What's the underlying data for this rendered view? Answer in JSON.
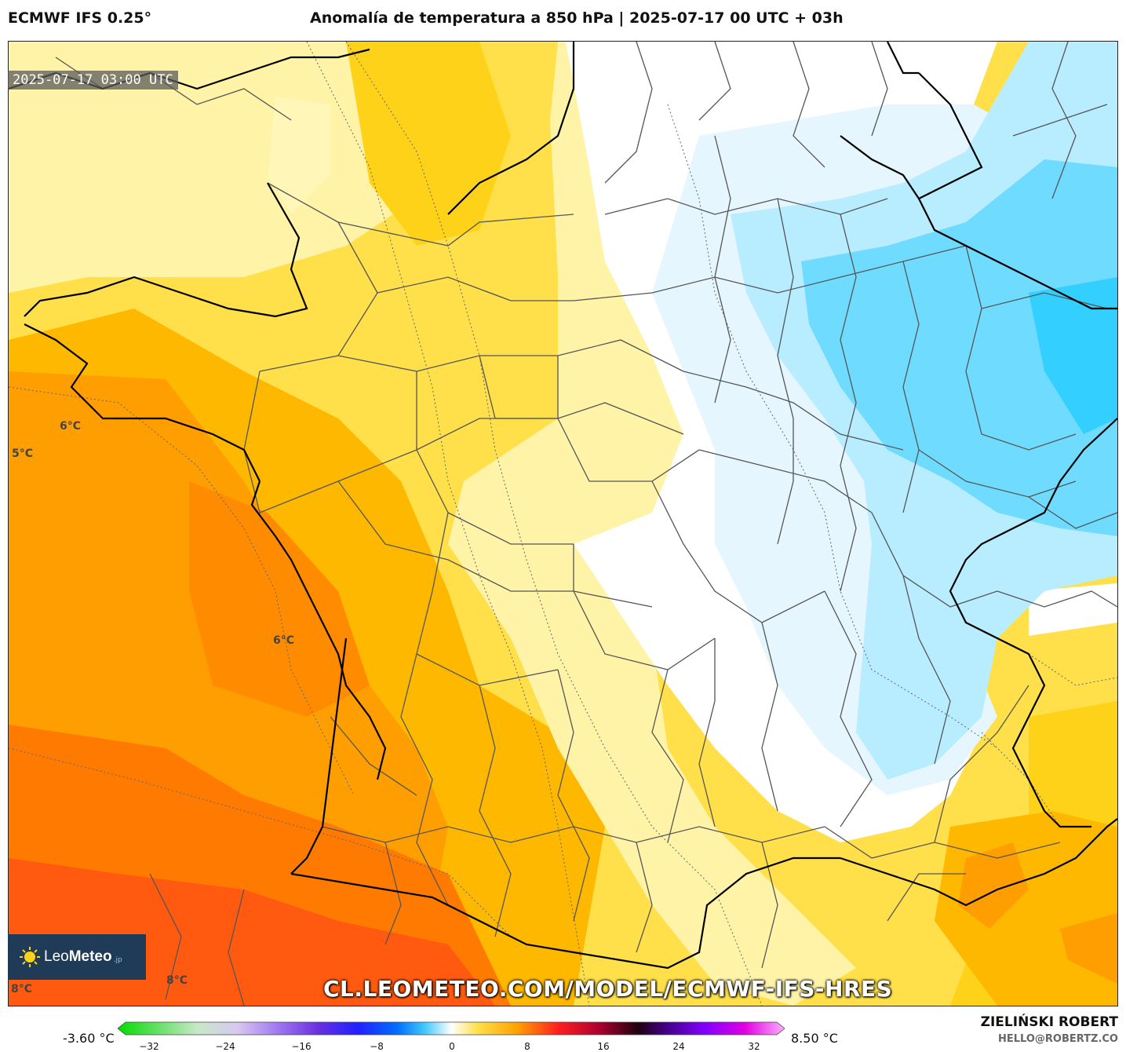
{
  "header": {
    "model": "ECMWF IFS 0.25°",
    "title": "Anomalía de temperatura a 850 hPa | 2025-07-17 00 UTC + 03h"
  },
  "map": {
    "timestamp": "2025-07-17 03:00 UTC",
    "contour_labels": [
      "6°C",
      "5°C",
      "6°C",
      "8°C",
      "8°C"
    ],
    "colors": {
      "light_yellow": "#fff3a8",
      "yellow": "#ffe04a",
      "gold": "#ffd21a",
      "light_orange": "#ffb800",
      "orange": "#ff9e00",
      "dark_orange": "#ff7a00",
      "red_orange": "#ff5a10",
      "white": "#ffffff",
      "pale_blue": "#e6f6ff",
      "light_blue": "#b8ecff",
      "sky_blue": "#6fdcff",
      "cyan": "#33cfff"
    }
  },
  "watermark": {
    "logo_text": "Leo",
    "logo_bold": "Meteo",
    "logo_suffix": ".jp",
    "url": "CL.LEOMETEO.COM/MODEL/ECMWF-IFS-HRES"
  },
  "colorbar": {
    "min_label": "-3.60 °C",
    "max_label": "8.50 °C",
    "ticks": [
      "−32",
      "−24",
      "−16",
      "−8",
      "0",
      "8",
      "16",
      "24",
      "32"
    ],
    "range": [
      -32,
      32
    ]
  },
  "footer": {
    "author": "ZIELIŃSKI ROBERT",
    "email": "HELLO@ROBERTZ.CO"
  }
}
